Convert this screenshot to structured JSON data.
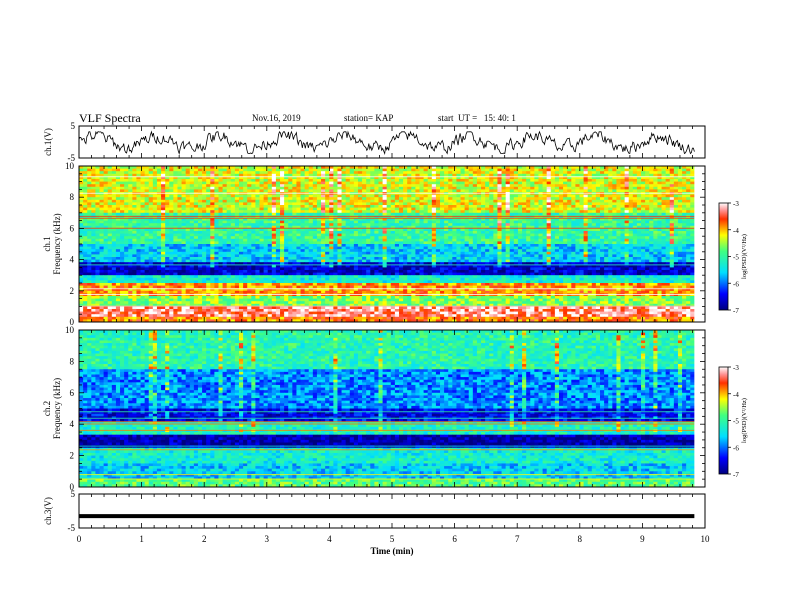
{
  "header": {
    "title": "VLF Spectra",
    "date": "Nov.16, 2019",
    "station": "station= KAP",
    "start": "start  UT =   15: 40: 1"
  },
  "chart_data": [
    {
      "type": "line",
      "panel": "ch.1 waveform",
      "ylabel": "ch.1(V)",
      "ylim": [
        -5,
        5
      ],
      "yticks": [
        "5",
        "-5"
      ],
      "xlim": [
        0,
        10
      ],
      "x_end": 9.83,
      "trace": "noisy waveform fluctuating roughly between -2.5 V and 2.5 V"
    },
    {
      "type": "heatmap",
      "panel": "ch.1 spectrogram",
      "ylabel": "ch.1\nFrequency (kHz)",
      "ylim": [
        0,
        10
      ],
      "yticks": [
        "0",
        "2",
        "4",
        "6",
        "8",
        "10"
      ],
      "xlim": [
        0,
        10
      ],
      "x_end": 9.83,
      "colorbar": {
        "label": "log(PSD)(V²/Hz)",
        "range": [
          -7,
          -3
        ],
        "ticks": [
          "-3",
          "-4",
          "-5",
          "-6",
          "-7"
        ]
      },
      "bands": [
        {
          "fmin": 0.0,
          "fmax": 0.3,
          "level": -3.8
        },
        {
          "fmin": 0.3,
          "fmax": 1.0,
          "level": -3.3
        },
        {
          "fmin": 1.0,
          "fmax": 1.6,
          "level": -4.6
        },
        {
          "fmin": 1.6,
          "fmax": 2.5,
          "level": -3.9
        },
        {
          "fmin": 2.5,
          "fmax": 3.0,
          "level": -5.3
        },
        {
          "fmin": 3.0,
          "fmax": 3.9,
          "level": -6.6
        },
        {
          "fmin": 3.9,
          "fmax": 5.0,
          "level": -5.6
        },
        {
          "fmin": 5.0,
          "fmax": 7.0,
          "level": -5.0
        },
        {
          "fmin": 7.0,
          "fmax": 10.0,
          "level": -4.3
        }
      ]
    },
    {
      "type": "heatmap",
      "panel": "ch.2 spectrogram",
      "ylabel": "ch.2\nFrequency (kHz)",
      "ylim": [
        0,
        10
      ],
      "yticks": [
        "0",
        "2",
        "4",
        "6",
        "8",
        "10"
      ],
      "xlim": [
        0,
        10
      ],
      "x_end": 9.83,
      "colorbar": {
        "label": "log(PSD)(V²/Hz)",
        "range": [
          -7,
          -3
        ],
        "ticks": [
          "-3",
          "-4",
          "-5",
          "-6",
          "-7"
        ]
      },
      "bands": [
        {
          "fmin": 0.0,
          "fmax": 0.5,
          "level": -4.8
        },
        {
          "fmin": 0.5,
          "fmax": 1.5,
          "level": -5.6
        },
        {
          "fmin": 1.5,
          "fmax": 2.5,
          "level": -5.3
        },
        {
          "fmin": 2.5,
          "fmax": 3.4,
          "level": -6.8
        },
        {
          "fmin": 3.4,
          "fmax": 4.2,
          "level": -5.2
        },
        {
          "fmin": 4.2,
          "fmax": 5.0,
          "level": -6.5
        },
        {
          "fmin": 5.0,
          "fmax": 7.5,
          "level": -5.9
        },
        {
          "fmin": 7.5,
          "fmax": 10.0,
          "level": -5.1
        }
      ]
    },
    {
      "type": "line",
      "panel": "ch.3 waveform",
      "ylabel": "ch.3(V)",
      "ylim": [
        -5,
        5
      ],
      "yticks": [
        "5",
        "-5"
      ],
      "xlim": [
        0,
        10
      ],
      "x_end": 9.83,
      "constant_value": -1.5,
      "xlabel": "Time  (min)",
      "xticks": [
        "0",
        "1",
        "2",
        "3",
        "4",
        "5",
        "6",
        "7",
        "8",
        "9",
        "10"
      ]
    }
  ]
}
